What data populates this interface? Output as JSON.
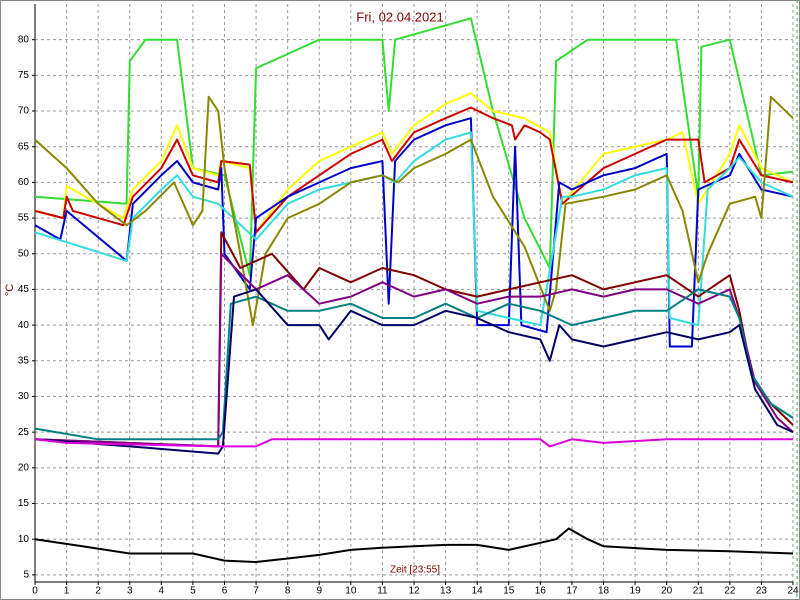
{
  "chart_data": {
    "type": "line",
    "title": "Fri, 02.04.2021",
    "ylabel": "°C",
    "xlabel": "Zeit [23:55]",
    "xlim": [
      0,
      24
    ],
    "xticks": [
      0,
      1,
      2,
      3,
      4,
      5,
      6,
      7,
      8,
      9,
      10,
      11,
      12,
      13,
      14,
      15,
      16,
      17,
      18,
      19,
      20,
      21,
      22,
      23,
      24
    ],
    "ylim": [
      4,
      85
    ],
    "yticks": [
      5,
      10,
      15,
      20,
      25,
      30,
      35,
      40,
      45,
      50,
      55,
      60,
      65,
      70,
      75,
      80
    ],
    "grid": true,
    "series": [
      {
        "color": "#33dd33",
        "x": [
          0,
          2.9,
          3.0,
          3.5,
          4.5,
          5,
          6,
          6.8,
          7.0,
          8,
          9,
          11,
          11.2,
          11.4,
          13,
          13.8,
          14.5,
          15.5,
          16.3,
          16.5,
          17.5,
          20.3,
          21,
          21.1,
          22,
          23,
          24
        ],
        "values": [
          58,
          57,
          77,
          80,
          80,
          62,
          61,
          47,
          76,
          78,
          80,
          80,
          70,
          80,
          82,
          83,
          70,
          55,
          48,
          77,
          80,
          80,
          58,
          79,
          80,
          61,
          61.5
        ]
      },
      {
        "color": "#ffff00",
        "x": [
          0,
          0.9,
          1,
          2.8,
          3.1,
          4,
          4.5,
          5,
          5.8,
          5.9,
          6.8,
          7,
          8,
          9,
          10,
          11,
          11.3,
          12,
          13,
          13.8,
          14.5,
          15.5,
          16.3,
          16.7,
          18,
          20,
          20.5,
          21,
          22,
          22.3,
          23,
          24
        ],
        "values": [
          56,
          55,
          59.5,
          55,
          59,
          63,
          68,
          62,
          61,
          63,
          62,
          53,
          59,
          63,
          65,
          67,
          64,
          68,
          71,
          72.5,
          70,
          69,
          67,
          57,
          64,
          66,
          67,
          57,
          64,
          68,
          62,
          60
        ]
      },
      {
        "color": "#cc0000",
        "x": [
          0,
          0.9,
          1,
          1.2,
          2.8,
          3.1,
          4,
          4.5,
          5,
          5.8,
          5.9,
          6.8,
          7,
          8,
          9,
          10,
          11,
          11.3,
          12,
          13,
          13.8,
          14.5,
          15.1,
          15.2,
          15.5,
          16,
          16.3,
          16.7,
          18,
          19,
          20,
          21,
          21.2,
          22,
          22.3,
          23,
          24
        ],
        "values": [
          56,
          55,
          58,
          56,
          54,
          58,
          62,
          66,
          61,
          60,
          63,
          62.5,
          53,
          58,
          61,
          64,
          66,
          63,
          67,
          69,
          70.5,
          69,
          68,
          66,
          68,
          67,
          66,
          57,
          62,
          64,
          66,
          66,
          60,
          62,
          66,
          61,
          60
        ]
      },
      {
        "color": "#0000cc",
        "x": [
          0,
          0.8,
          1,
          2.9,
          3.1,
          4,
          4.5,
          5,
          5.8,
          5.9,
          6.0,
          6.8,
          7.0,
          8,
          9,
          10,
          11,
          11.2,
          11.4,
          12,
          13,
          13.8,
          14,
          15,
          15.2,
          15.4,
          16.2,
          16.6,
          17,
          18,
          19,
          20,
          20.1,
          20.8,
          21,
          22,
          22.3,
          23,
          24
        ],
        "values": [
          54,
          52,
          56,
          49,
          57,
          61,
          63,
          60,
          59,
          62,
          50,
          45,
          55,
          58,
          60,
          62,
          63,
          43,
          63,
          66,
          68,
          69,
          40,
          40,
          65,
          40,
          39,
          60,
          59,
          61,
          62,
          64,
          37,
          37,
          59,
          61,
          64,
          59,
          58
        ]
      },
      {
        "color": "#33dddd",
        "x": [
          0,
          2.9,
          3.1,
          4,
          4.5,
          5,
          5.8,
          7,
          8,
          9,
          10,
          11,
          11.4,
          12,
          13,
          13.8,
          14,
          15,
          16,
          16.7,
          17,
          18,
          19,
          20,
          20.1,
          21,
          21.3,
          22,
          22.3,
          23,
          24
        ],
        "values": [
          53,
          49,
          55,
          59,
          61,
          58,
          57,
          52,
          57,
          59,
          60,
          61,
          60,
          63,
          66,
          67,
          42,
          41,
          40,
          58,
          58,
          59,
          61,
          62,
          41,
          40,
          59,
          62,
          63.5,
          60,
          58
        ]
      },
      {
        "color": "#888800",
        "x": [
          0,
          1,
          2,
          2.9,
          3.5,
          4.4,
          5,
          5.3,
          5.5,
          5.8,
          6,
          6.5,
          6.9,
          7.3,
          8,
          9,
          10,
          11,
          11.5,
          12,
          13,
          13.8,
          14.5,
          15.5,
          16.3,
          16.5,
          16.8,
          18,
          19,
          20,
          20.5,
          21,
          21.3,
          22,
          22.8,
          23,
          23.3,
          24
        ],
        "values": [
          66,
          62,
          57,
          54,
          56,
          60,
          54,
          56,
          72,
          70,
          62,
          50,
          40,
          50,
          55,
          57,
          60,
          61,
          60,
          62,
          64,
          66,
          58,
          51,
          42,
          45,
          57,
          58,
          59,
          61,
          56,
          46,
          50,
          57,
          58,
          55,
          72,
          69
        ]
      },
      {
        "color": "#800000",
        "x": [
          0,
          5.8,
          5.9,
          6.5,
          7.5,
          8.5,
          9,
          10,
          11,
          12,
          13,
          14,
          15,
          16,
          17,
          18,
          19,
          20,
          21,
          22,
          22.3,
          22.7,
          23.3,
          24
        ],
        "values": [
          24,
          23,
          53,
          48,
          50,
          45,
          48,
          46,
          48,
          47,
          45,
          44,
          45,
          46,
          47,
          45,
          46,
          47,
          44,
          47,
          42,
          33,
          29,
          26
        ]
      },
      {
        "color": "#800080",
        "x": [
          0,
          5.8,
          5.9,
          7,
          8,
          9,
          10,
          11,
          12,
          13,
          14,
          15,
          16,
          17,
          18,
          19,
          20,
          21,
          22,
          22.3,
          22.8,
          23.5,
          24
        ],
        "values": [
          24,
          23,
          50,
          45,
          47,
          43,
          44,
          46,
          44,
          45,
          43,
          44,
          44,
          45,
          44,
          45,
          45,
          43,
          45,
          41,
          32,
          27,
          25
        ]
      },
      {
        "color": "#008080",
        "x": [
          0,
          2,
          5.8,
          5.95,
          6.2,
          7,
          8,
          9,
          10,
          11,
          12,
          13,
          14,
          15,
          16,
          17,
          18,
          19,
          20,
          21,
          22,
          22.3,
          22.7,
          23.3,
          24
        ],
        "values": [
          25.5,
          24,
          24,
          25,
          43,
          44,
          42,
          42,
          43,
          41,
          41,
          43,
          41,
          43,
          42,
          40,
          41,
          42,
          42,
          45,
          44,
          41,
          33,
          29,
          27
        ]
      },
      {
        "color": "#000066",
        "x": [
          0,
          3,
          5.8,
          5.95,
          6.3,
          7,
          8,
          9,
          9.3,
          10,
          11,
          12,
          13,
          14,
          15,
          16,
          16.3,
          16.6,
          17,
          18,
          19,
          20,
          21,
          22,
          22.3,
          22.8,
          23.5,
          24
        ],
        "values": [
          24,
          23,
          22,
          23,
          44,
          45,
          40,
          40,
          38,
          42,
          40,
          40,
          42,
          41,
          39,
          38,
          35,
          40,
          38,
          37,
          38,
          39,
          38,
          39,
          40,
          31,
          26,
          25
        ]
      },
      {
        "color": "#dd00dd",
        "x": [
          0,
          1,
          5.8,
          7,
          7.5,
          11,
          16,
          16.3,
          17,
          18,
          20,
          24
        ],
        "values": [
          24,
          23.5,
          23,
          23,
          24,
          24,
          24,
          23,
          24,
          23.5,
          24,
          24
        ]
      },
      {
        "color": "#000000",
        "x": [
          0,
          1.5,
          3,
          5,
          6,
          7,
          8,
          9,
          10,
          11,
          12,
          13,
          14,
          15,
          16,
          16.5,
          16.9,
          17.5,
          18,
          20,
          22,
          24
        ],
        "values": [
          10,
          9,
          8,
          8,
          7,
          6.8,
          7.3,
          7.8,
          8.5,
          8.8,
          9,
          9.2,
          9.2,
          8.5,
          9.5,
          10,
          11.5,
          10,
          9,
          8.5,
          8.3,
          8
        ]
      }
    ]
  }
}
